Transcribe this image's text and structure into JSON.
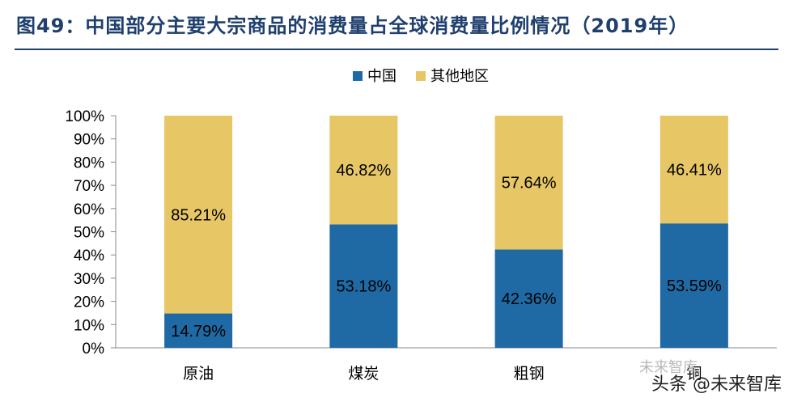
{
  "header": {
    "title": "图49：中国部分主要大宗商品的消费量占全球消费量比例情况（2019年）"
  },
  "watermark": {
    "text": "头条 @未来智库",
    "faint_text": "未来智库"
  },
  "colors": {
    "china": "#1f6aa5",
    "rest_of_world": "#e6c665",
    "title": "#1f3f6e"
  },
  "chart_data": {
    "type": "bar",
    "stacked": true,
    "categories": [
      "原油",
      "煤炭",
      "粗钢",
      "铜"
    ],
    "series": [
      {
        "name": "中国",
        "values": [
          14.79,
          53.18,
          42.36,
          53.59
        ],
        "labels": [
          "14.79%",
          "53.18%",
          "42.36%",
          "53.59%"
        ]
      },
      {
        "name": "其他地区",
        "values": [
          85.21,
          46.82,
          57.64,
          46.41
        ],
        "labels": [
          "85.21%",
          "46.82%",
          "57.64%",
          "46.41%"
        ]
      }
    ],
    "yticks": [
      "0%",
      "10%",
      "20%",
      "30%",
      "40%",
      "50%",
      "60%",
      "70%",
      "80%",
      "90%",
      "100%"
    ],
    "ylim": [
      0,
      100
    ],
    "legend_position": "top-center",
    "grid": false
  }
}
